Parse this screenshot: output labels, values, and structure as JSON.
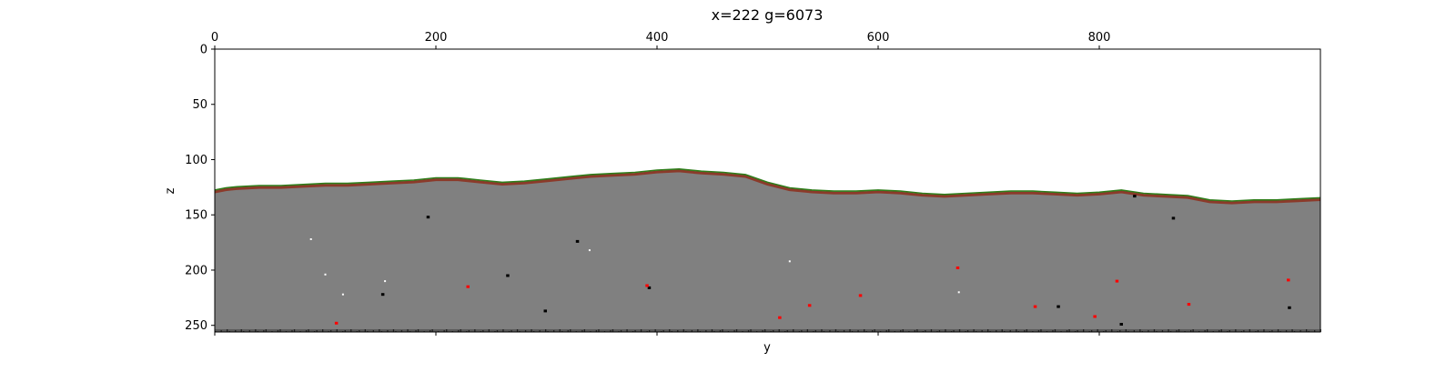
{
  "chart_data": {
    "type": "heatmap",
    "title": "x=222 g=6073",
    "xlabel": "y",
    "ylabel": "z",
    "xlim": [
      0,
      1000
    ],
    "ylim": [
      256,
      0
    ],
    "x_ticks": [
      "0",
      "200",
      "400",
      "600",
      "800"
    ],
    "x_tick_values": [
      0,
      200,
      400,
      600,
      800
    ],
    "y_ticks": [
      "0",
      "50",
      "100",
      "150",
      "200",
      "250"
    ],
    "y_tick_values": [
      0,
      50,
      100,
      150,
      200,
      250
    ],
    "x_tick_position": "top",
    "colors": {
      "stone": "#808080",
      "air": "#ffffff",
      "grass": "#2e7d1a",
      "dirt": "#8b3a2a",
      "ore_red": "#ff0000",
      "cave_black": "#000000",
      "bedrock": "#3a3a3a"
    },
    "surface_profile": {
      "y": [
        0,
        10,
        20,
        40,
        60,
        80,
        100,
        120,
        140,
        160,
        180,
        200,
        220,
        240,
        260,
        280,
        300,
        320,
        340,
        360,
        380,
        400,
        420,
        440,
        460,
        480,
        500,
        520,
        540,
        560,
        580,
        600,
        620,
        640,
        660,
        680,
        700,
        720,
        740,
        760,
        780,
        800,
        820,
        840,
        860,
        880,
        900,
        920,
        940,
        960,
        980,
        1000
      ],
      "z": [
        128,
        126,
        125,
        124,
        124,
        123,
        122,
        122,
        121,
        120,
        119,
        117,
        117,
        119,
        121,
        120,
        118,
        116,
        114,
        113,
        112,
        110,
        109,
        111,
        112,
        114,
        121,
        126,
        128,
        129,
        129,
        128,
        129,
        131,
        132,
        131,
        130,
        129,
        129,
        130,
        131,
        130,
        128,
        131,
        132,
        133,
        137,
        138,
        137,
        137,
        136,
        135
      ]
    },
    "features": [
      {
        "kind": "air",
        "y": 87,
        "z": 172
      },
      {
        "kind": "air",
        "y": 100,
        "z": 204
      },
      {
        "kind": "air",
        "y": 116,
        "z": 222
      },
      {
        "kind": "air",
        "y": 154,
        "z": 210
      },
      {
        "kind": "air",
        "y": 339,
        "z": 182
      },
      {
        "kind": "air",
        "y": 520,
        "z": 192
      },
      {
        "kind": "air",
        "y": 673,
        "z": 220
      },
      {
        "kind": "cave_black",
        "y": 193,
        "z": 152
      },
      {
        "kind": "cave_black",
        "y": 152,
        "z": 222
      },
      {
        "kind": "cave_black",
        "y": 265,
        "z": 205
      },
      {
        "kind": "cave_black",
        "y": 328,
        "z": 174
      },
      {
        "kind": "cave_black",
        "y": 299,
        "z": 237
      },
      {
        "kind": "cave_black",
        "y": 393,
        "z": 216
      },
      {
        "kind": "cave_black",
        "y": 763,
        "z": 233
      },
      {
        "kind": "cave_black",
        "y": 820,
        "z": 249
      },
      {
        "kind": "cave_black",
        "y": 832,
        "z": 133
      },
      {
        "kind": "cave_black",
        "y": 867,
        "z": 153
      },
      {
        "kind": "cave_black",
        "y": 972,
        "z": 234
      },
      {
        "kind": "ore_red",
        "y": 110,
        "z": 248
      },
      {
        "kind": "ore_red",
        "y": 229,
        "z": 215
      },
      {
        "kind": "ore_red",
        "y": 391,
        "z": 214
      },
      {
        "kind": "ore_red",
        "y": 511,
        "z": 243
      },
      {
        "kind": "ore_red",
        "y": 538,
        "z": 232
      },
      {
        "kind": "ore_red",
        "y": 584,
        "z": 223
      },
      {
        "kind": "ore_red",
        "y": 672,
        "z": 198
      },
      {
        "kind": "ore_red",
        "y": 742,
        "z": 233
      },
      {
        "kind": "ore_red",
        "y": 796,
        "z": 242
      },
      {
        "kind": "ore_red",
        "y": 816,
        "z": 210
      },
      {
        "kind": "ore_red",
        "y": 881,
        "z": 231
      },
      {
        "kind": "ore_red",
        "y": 971,
        "z": 209
      }
    ]
  }
}
